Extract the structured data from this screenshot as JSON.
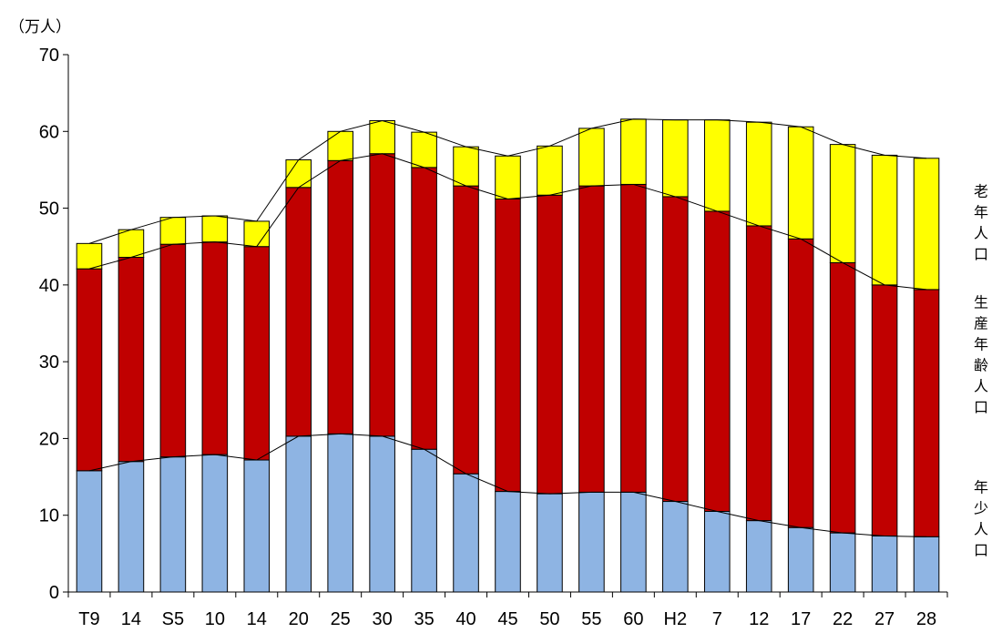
{
  "chart_data": {
    "type": "bar",
    "stacked": true,
    "unit_label": "（万人）",
    "categories": [
      "T9",
      "14",
      "S5",
      "10",
      "14",
      "20",
      "25",
      "30",
      "35",
      "40",
      "45",
      "50",
      "55",
      "60",
      "H2",
      "7",
      "12",
      "17",
      "22",
      "27",
      "28"
    ],
    "series": [
      {
        "name": "年少人口",
        "color": "#8EB4E3",
        "values": [
          15.8,
          17.0,
          17.6,
          17.9,
          17.2,
          20.3,
          20.6,
          20.3,
          18.6,
          15.4,
          13.1,
          12.8,
          13.0,
          13.0,
          11.8,
          10.5,
          9.3,
          8.4,
          7.7,
          7.3,
          7.2
        ]
      },
      {
        "name": "生産年齢人口",
        "color": "#C00000",
        "values": [
          26.3,
          26.6,
          27.7,
          27.7,
          27.8,
          32.4,
          35.6,
          36.8,
          36.7,
          37.5,
          38.1,
          38.9,
          39.9,
          40.1,
          39.7,
          39.1,
          38.4,
          37.6,
          35.2,
          32.7,
          32.2
        ]
      },
      {
        "name": "老年人口",
        "color": "#FFFF00",
        "values": [
          3.3,
          3.6,
          3.5,
          3.4,
          3.3,
          3.6,
          3.8,
          4.3,
          4.6,
          5.1,
          5.6,
          6.4,
          7.5,
          8.5,
          10.0,
          11.9,
          13.5,
          14.6,
          15.4,
          16.9,
          17.1
        ]
      }
    ],
    "yticks": [
      0,
      10,
      20,
      30,
      40,
      50,
      60,
      70
    ],
    "ylim": [
      0,
      70
    ],
    "grid": false,
    "legend": "right, vertical labels"
  }
}
